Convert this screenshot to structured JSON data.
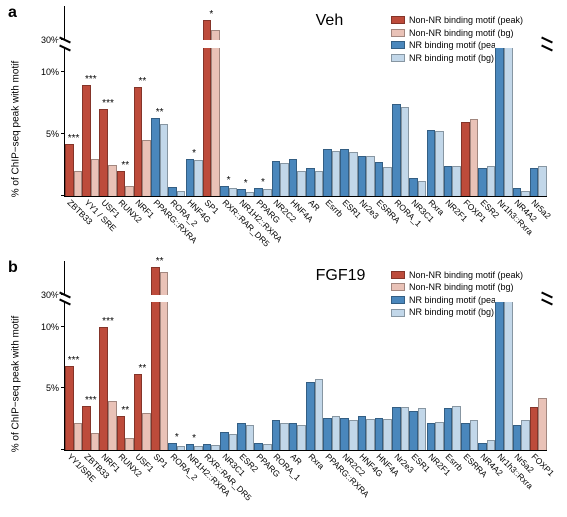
{
  "global": {
    "yaxis_label": "% of ChIP−seq peak with motif",
    "legend": [
      {
        "label": "Non-NR  binding motif (peak)",
        "color": "#bd4b3b"
      },
      {
        "label": "Non-NR  binding motif (bg)",
        "color": "#e9c2b7"
      },
      {
        "label": "NR binding motif (peak)",
        "color": "#4a87bc"
      },
      {
        "label": "NR binding motif (bg)",
        "color": "#c2d7e9"
      }
    ],
    "bg_color": "#ffffff",
    "axis_color": "#000000",
    "label_fontsize": 10,
    "tick_fontsize": 9,
    "xlabel_fontsize": 8.5,
    "xlabel_rotation": 45,
    "bar_border": "rgba(0,0,0,0.3)"
  },
  "panels": [
    {
      "id": "a",
      "title": "Veh",
      "title_fontsize": 16,
      "break_at_percent": 12,
      "upper_range": [
        30,
        40
      ],
      "lower_range": [
        0,
        12
      ],
      "yticks": [
        0,
        5,
        10,
        30
      ],
      "ytick_labels": [
        "",
        "5%",
        "10%",
        "30%"
      ],
      "categories": [
        {
          "name": "ZBTB33",
          "nr": false,
          "peak": 4.2,
          "bg": 2.0,
          "sig": "***"
        },
        {
          "name": "YY1 / SRE",
          "nr": false,
          "peak": 9.0,
          "bg": 3.0,
          "sig": "***"
        },
        {
          "name": "USF1",
          "nr": false,
          "peak": 7.0,
          "bg": 2.5,
          "sig": "***"
        },
        {
          "name": "RUNX2",
          "nr": false,
          "peak": 2.0,
          "bg": 0.8,
          "sig": "**"
        },
        {
          "name": "NRF1",
          "nr": false,
          "peak": 8.8,
          "bg": 4.5,
          "sig": "**"
        },
        {
          "name": "PPARG::RXRA",
          "nr": true,
          "peak": 6.3,
          "bg": 5.8,
          "sig": "**"
        },
        {
          "name": "RORA_2",
          "nr": true,
          "peak": 0.7,
          "bg": 0.4,
          "sig": ""
        },
        {
          "name": "HNF4G",
          "nr": true,
          "peak": 3.0,
          "bg": 2.9,
          "sig": "*"
        },
        {
          "name": "SP1",
          "nr": false,
          "peak": 36.0,
          "bg": 33.0,
          "sig": "*"
        },
        {
          "name": "RXR::RAR_DR5",
          "nr": true,
          "peak": 0.8,
          "bg": 0.6,
          "sig": "*"
        },
        {
          "name": "NR1H2::RXRA",
          "nr": true,
          "peak": 0.5,
          "bg": 0.3,
          "sig": "*"
        },
        {
          "name": "PPARG",
          "nr": true,
          "peak": 0.6,
          "bg": 0.5,
          "sig": "*"
        },
        {
          "name": "NR2C2",
          "nr": true,
          "peak": 2.8,
          "bg": 2.6,
          "sig": ""
        },
        {
          "name": "HNF4A",
          "nr": true,
          "peak": 3.0,
          "bg": 2.0,
          "sig": ""
        },
        {
          "name": "AR",
          "nr": true,
          "peak": 2.2,
          "bg": 2.0,
          "sig": ""
        },
        {
          "name": "Esrrb",
          "nr": true,
          "peak": 3.8,
          "bg": 3.6,
          "sig": ""
        },
        {
          "name": "ESR1",
          "nr": true,
          "peak": 3.8,
          "bg": 3.5,
          "sig": ""
        },
        {
          "name": "Nr2e3",
          "nr": true,
          "peak": 3.2,
          "bg": 3.2,
          "sig": ""
        },
        {
          "name": "ESRRA",
          "nr": true,
          "peak": 2.7,
          "bg": 2.3,
          "sig": ""
        },
        {
          "name": "RORA_1",
          "nr": true,
          "peak": 7.4,
          "bg": 7.2,
          "sig": ""
        },
        {
          "name": "NR3C1",
          "nr": true,
          "peak": 1.4,
          "bg": 1.2,
          "sig": ""
        },
        {
          "name": "Rxra",
          "nr": true,
          "peak": 5.3,
          "bg": 5.2,
          "sig": ""
        },
        {
          "name": "NR2F1",
          "nr": true,
          "peak": 2.4,
          "bg": 2.4,
          "sig": ""
        },
        {
          "name": "FOXP1",
          "nr": false,
          "peak": 6.0,
          "bg": 6.2,
          "sig": ""
        },
        {
          "name": "ESR2",
          "nr": true,
          "peak": 2.2,
          "bg": 2.4,
          "sig": ""
        },
        {
          "name": "Nr1h3::Rxra",
          "nr": true,
          "peak": 17.0,
          "bg": 17.0,
          "sig": ""
        },
        {
          "name": "NR4A2",
          "nr": true,
          "peak": 0.6,
          "bg": 0.4,
          "sig": ""
        },
        {
          "name": "Nr5a2",
          "nr": true,
          "peak": 2.2,
          "bg": 2.4,
          "sig": ""
        }
      ]
    },
    {
      "id": "b",
      "title": "FGF19",
      "title_fontsize": 16,
      "break_at_percent": 12,
      "upper_range": [
        30,
        50
      ],
      "lower_range": [
        0,
        12
      ],
      "yticks": [
        0,
        5,
        10,
        30
      ],
      "ytick_labels": [
        "",
        "5%",
        "10%",
        "30%"
      ],
      "categories": [
        {
          "name": "YY1/SRE",
          "nr": false,
          "peak": 6.8,
          "bg": 2.2,
          "sig": "***"
        },
        {
          "name": "ZBTB33",
          "nr": false,
          "peak": 3.6,
          "bg": 1.4,
          "sig": "***"
        },
        {
          "name": "NRF1",
          "nr": false,
          "peak": 10.0,
          "bg": 4.0,
          "sig": "***"
        },
        {
          "name": "RUNX2",
          "nr": false,
          "peak": 2.8,
          "bg": 1.0,
          "sig": "**"
        },
        {
          "name": "USF1",
          "nr": false,
          "peak": 6.2,
          "bg": 3.0,
          "sig": "**"
        },
        {
          "name": "SP1",
          "nr": false,
          "peak": 46.0,
          "bg": 43.0,
          "sig": "**"
        },
        {
          "name": "RORA_2",
          "nr": true,
          "peak": 0.6,
          "bg": 0.3,
          "sig": "*"
        },
        {
          "name": "NR1H2::RXRA",
          "nr": true,
          "peak": 0.5,
          "bg": 0.3,
          "sig": "*"
        },
        {
          "name": "RXR::RAR_DR5",
          "nr": true,
          "peak": 0.5,
          "bg": 0.4,
          "sig": ""
        },
        {
          "name": "NR3C1",
          "nr": true,
          "peak": 1.5,
          "bg": 1.3,
          "sig": ""
        },
        {
          "name": "ESR2",
          "nr": true,
          "peak": 2.2,
          "bg": 2.0,
          "sig": ""
        },
        {
          "name": "PPARG",
          "nr": true,
          "peak": 0.6,
          "bg": 0.5,
          "sig": ""
        },
        {
          "name": "RORA_1",
          "nr": true,
          "peak": 2.4,
          "bg": 2.2,
          "sig": ""
        },
        {
          "name": "AR",
          "nr": true,
          "peak": 2.2,
          "bg": 2.0,
          "sig": ""
        },
        {
          "name": "Rxra",
          "nr": true,
          "peak": 5.5,
          "bg": 5.8,
          "sig": ""
        },
        {
          "name": "PPARG::RXRA",
          "nr": true,
          "peak": 2.6,
          "bg": 2.8,
          "sig": ""
        },
        {
          "name": "NR2C2",
          "nr": true,
          "peak": 2.6,
          "bg": 2.4,
          "sig": ""
        },
        {
          "name": "HNF4G",
          "nr": true,
          "peak": 2.8,
          "bg": 2.5,
          "sig": ""
        },
        {
          "name": "HNF4A",
          "nr": true,
          "peak": 2.6,
          "bg": 2.5,
          "sig": ""
        },
        {
          "name": "Nr2e3",
          "nr": true,
          "peak": 3.5,
          "bg": 3.5,
          "sig": ""
        },
        {
          "name": "ESR1",
          "nr": true,
          "peak": 3.2,
          "bg": 3.4,
          "sig": ""
        },
        {
          "name": "NR2F1",
          "nr": true,
          "peak": 2.2,
          "bg": 2.3,
          "sig": ""
        },
        {
          "name": "Esrrb",
          "nr": true,
          "peak": 3.4,
          "bg": 3.6,
          "sig": ""
        },
        {
          "name": "ESRRA",
          "nr": true,
          "peak": 2.2,
          "bg": 2.4,
          "sig": ""
        },
        {
          "name": "NR4A2",
          "nr": true,
          "peak": 0.6,
          "bg": 0.8,
          "sig": ""
        },
        {
          "name": "Nr1h3::Rxra",
          "nr": true,
          "peak": 13.8,
          "bg": 14.2,
          "sig": ""
        },
        {
          "name": "Nr5a2",
          "nr": true,
          "peak": 2.0,
          "bg": 2.4,
          "sig": ""
        },
        {
          "name": "FOXP1",
          "nr": false,
          "peak": 3.5,
          "bg": 4.2,
          "sig": ""
        }
      ]
    }
  ]
}
